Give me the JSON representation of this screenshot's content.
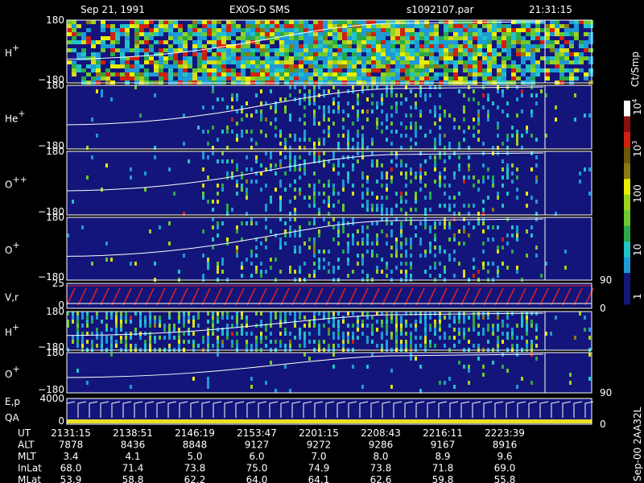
{
  "header": {
    "date": "Sep 21, 1991",
    "instrument": "EXOS-D SMS",
    "file": "s1092107.par",
    "time": "21:31:15"
  },
  "panels": [
    {
      "label": "H",
      "sup": "+",
      "top": "180",
      "bottom": "−180"
    },
    {
      "label": "He",
      "sup": "+",
      "top": "180",
      "bottom": "−180"
    },
    {
      "label": "O",
      "sup": "++",
      "top": "180",
      "bottom": "−180"
    },
    {
      "label": "O",
      "sup": "+",
      "top": "180",
      "bottom": "−180",
      "right": "90"
    },
    {
      "label": "V,r",
      "top": "25",
      "bottom": "0",
      "right": "0"
    },
    {
      "label": "H",
      "sup": "+",
      "top": "180",
      "bottom": "−180"
    },
    {
      "label": "O",
      "sup": "+",
      "top": "180",
      "bottom": "−180",
      "right": "90"
    },
    {
      "label": "E,p",
      "label2": "QA",
      "top": "4000",
      "bottom": "0",
      "right": "0"
    }
  ],
  "colorbar": {
    "unit": "Ct/Smp",
    "powers": [
      {
        "base": "10",
        "exp": "4"
      },
      {
        "base": "10",
        "exp": "3"
      }
    ],
    "labels": [
      "100",
      "10",
      "1"
    ]
  },
  "side_note": "Sep-00 2AA32L",
  "footer": {
    "rows": [
      {
        "name": "UT",
        "values": [
          "2131:15",
          "2138:51",
          "2146:19",
          "2153:47",
          "2201:15",
          "2208:43",
          "2216:11",
          "2223:39"
        ]
      },
      {
        "name": "ALT",
        "values": [
          "7878",
          "8436",
          "8848",
          "9127",
          "9272",
          "9286",
          "9167",
          "8916"
        ]
      },
      {
        "name": "MLT",
        "values": [
          "3.4",
          "4.1",
          "5.0",
          "6.0",
          "7.0",
          "8.0",
          "8.9",
          "9.6"
        ]
      },
      {
        "name": "InLat",
        "values": [
          "68.0",
          "71.4",
          "73.8",
          "75.0",
          "74.9",
          "73.8",
          "71.8",
          "69.0"
        ]
      },
      {
        "name": "MLat",
        "values": [
          "53.9",
          "58.8",
          "62.2",
          "64.0",
          "64.1",
          "62.6",
          "59.8",
          "55.8"
        ]
      }
    ]
  }
}
